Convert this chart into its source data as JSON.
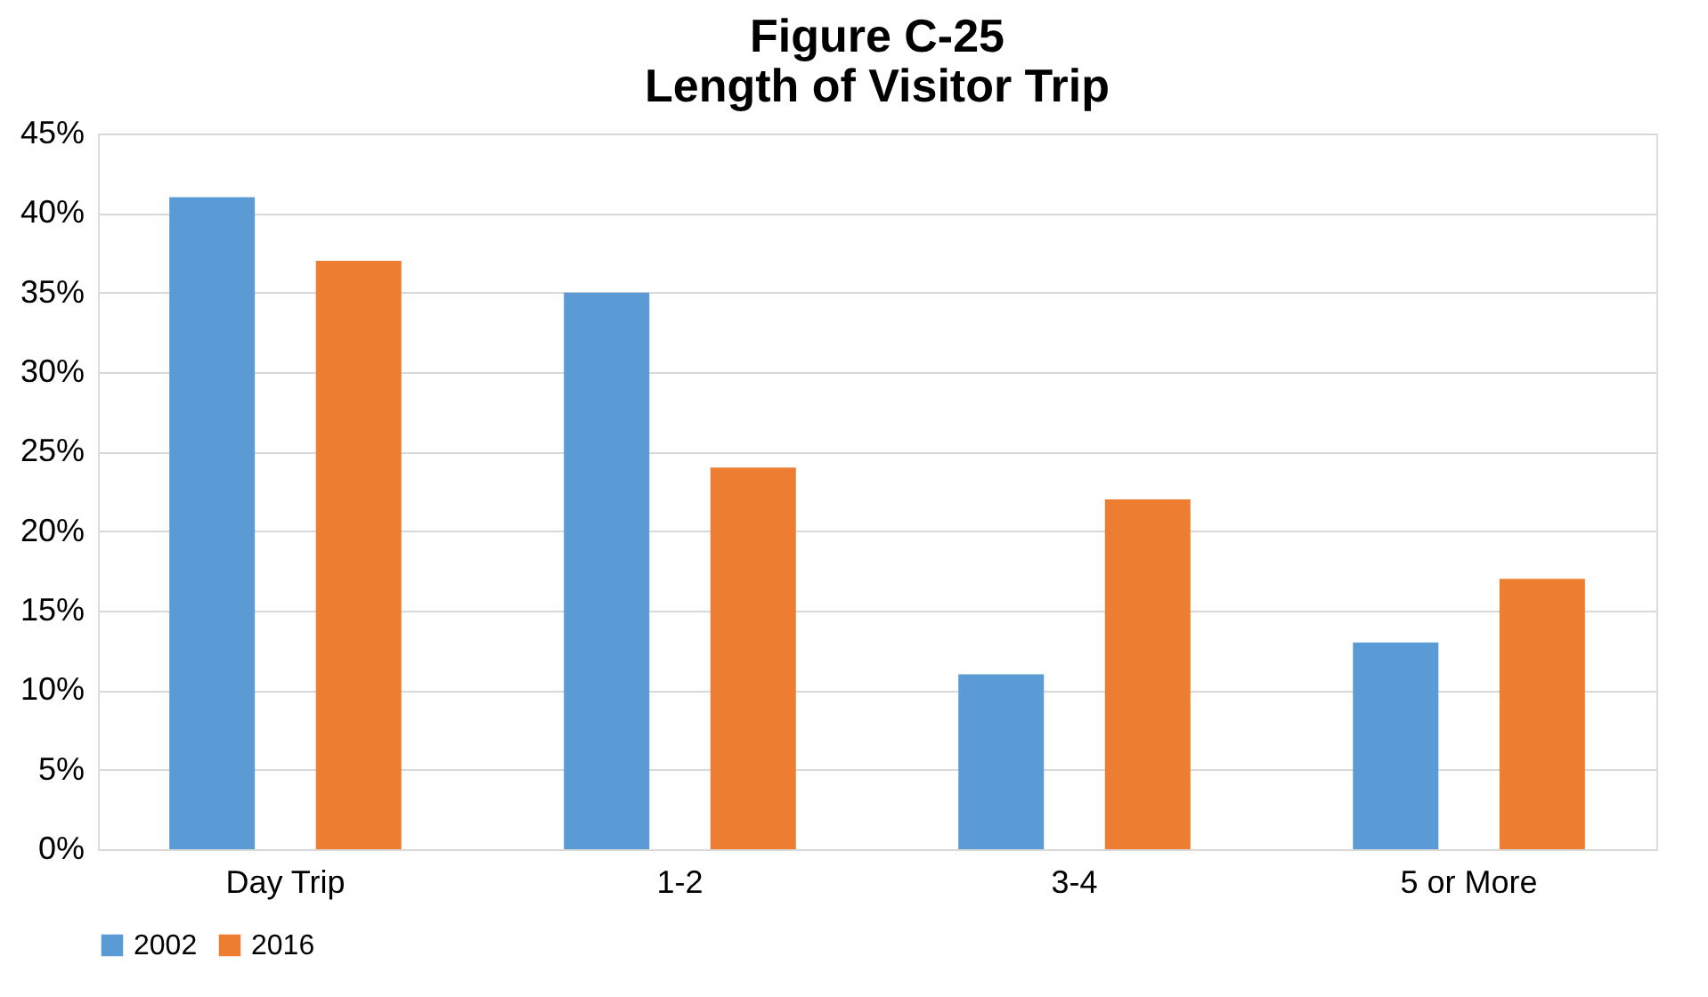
{
  "chart_data": {
    "type": "bar",
    "title": "Figure C-25\nLength of Visitor Trip",
    "categories": [
      "Day Trip",
      "1-2",
      "3-4",
      "5 or More"
    ],
    "series": [
      {
        "name": "2002",
        "color": "#5b9bd5",
        "values": [
          41,
          35,
          11,
          13
        ]
      },
      {
        "name": "2016",
        "color": "#ed7d31",
        "values": [
          37,
          24,
          22,
          17
        ]
      }
    ],
    "ylim": [
      0,
      45
    ],
    "yticks": [
      {
        "value": 0,
        "label": "0%"
      },
      {
        "value": 5,
        "label": "5%"
      },
      {
        "value": 10,
        "label": "10%"
      },
      {
        "value": 15,
        "label": "15%"
      },
      {
        "value": 20,
        "label": "20%"
      },
      {
        "value": 25,
        "label": "25%"
      },
      {
        "value": 30,
        "label": "30%"
      },
      {
        "value": 35,
        "label": "35%"
      },
      {
        "value": 40,
        "label": "40%"
      },
      {
        "value": 45,
        "label": "45%"
      }
    ],
    "grid": "y",
    "legend": "bottom"
  }
}
